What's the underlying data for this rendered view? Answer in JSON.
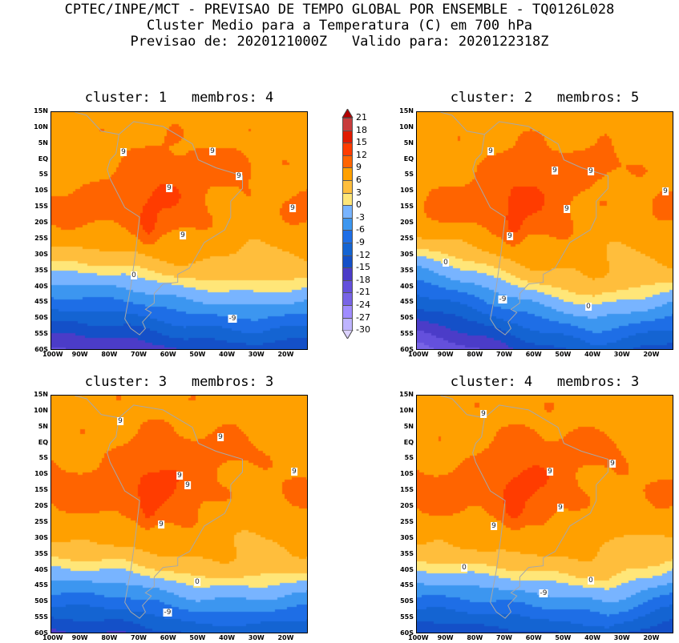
{
  "header": {
    "line1": "CPTEC/INPE/MCT - PREVISAO DE TEMPO GLOBAL POR ENSEMBLE - TQ0126L028",
    "line2": "Cluster Medio para a Temperatura (C) em 700 hPa",
    "line3": "Previsao de: 2020121000Z   Valido para: 2020122318Z"
  },
  "axes": {
    "lat_ticks": [
      "15N",
      "10N",
      "5N",
      "EQ",
      "5S",
      "10S",
      "15S",
      "20S",
      "25S",
      "30S",
      "35S",
      "40S",
      "45S",
      "50S",
      "55S",
      "60S"
    ],
    "lon_ticks": [
      "100W",
      "90W",
      "80W",
      "70W",
      "60W",
      "50W",
      "40W",
      "30W",
      "20W"
    ]
  },
  "panels": [
    {
      "title": "cluster: 1   membros: 4",
      "contour_labels": [
        "9",
        "9",
        "9",
        "9",
        "9",
        "9",
        "0",
        "-9"
      ]
    },
    {
      "title": "cluster: 2   membros: 5",
      "contour_labels": [
        "9",
        "9",
        "9",
        "9",
        "9",
        "9",
        "0",
        "-9",
        "0"
      ]
    },
    {
      "title": "cluster: 3   membros: 3",
      "contour_labels": [
        "9",
        "9",
        "9",
        "9",
        "9",
        "9",
        "0",
        "-9"
      ]
    },
    {
      "title": "cluster: 4   membros: 3",
      "contour_labels": [
        "9",
        "9",
        "9",
        "9",
        "9",
        "0",
        "0",
        "-9"
      ]
    }
  ],
  "colorbar": {
    "labels": [
      "21",
      "18",
      "15",
      "12",
      "9",
      "6",
      "3",
      "0",
      "-3",
      "-6",
      "-9",
      "-12",
      "-15",
      "-18",
      "-21",
      "-24",
      "-27",
      "-30"
    ],
    "colors": [
      "#c83c3c",
      "#e01a00",
      "#ff3c00",
      "#ff6400",
      "#ffa000",
      "#ffbe3c",
      "#ffe678",
      "#78b4ff",
      "#3c96f0",
      "#1e6ee6",
      "#1464d2",
      "#1450c8",
      "#4b3cc8",
      "#6450dc",
      "#7864e6",
      "#a08cff",
      "#beb4ff"
    ],
    "over_color": "#b40000",
    "under_color": "#dcd2ff"
  }
}
